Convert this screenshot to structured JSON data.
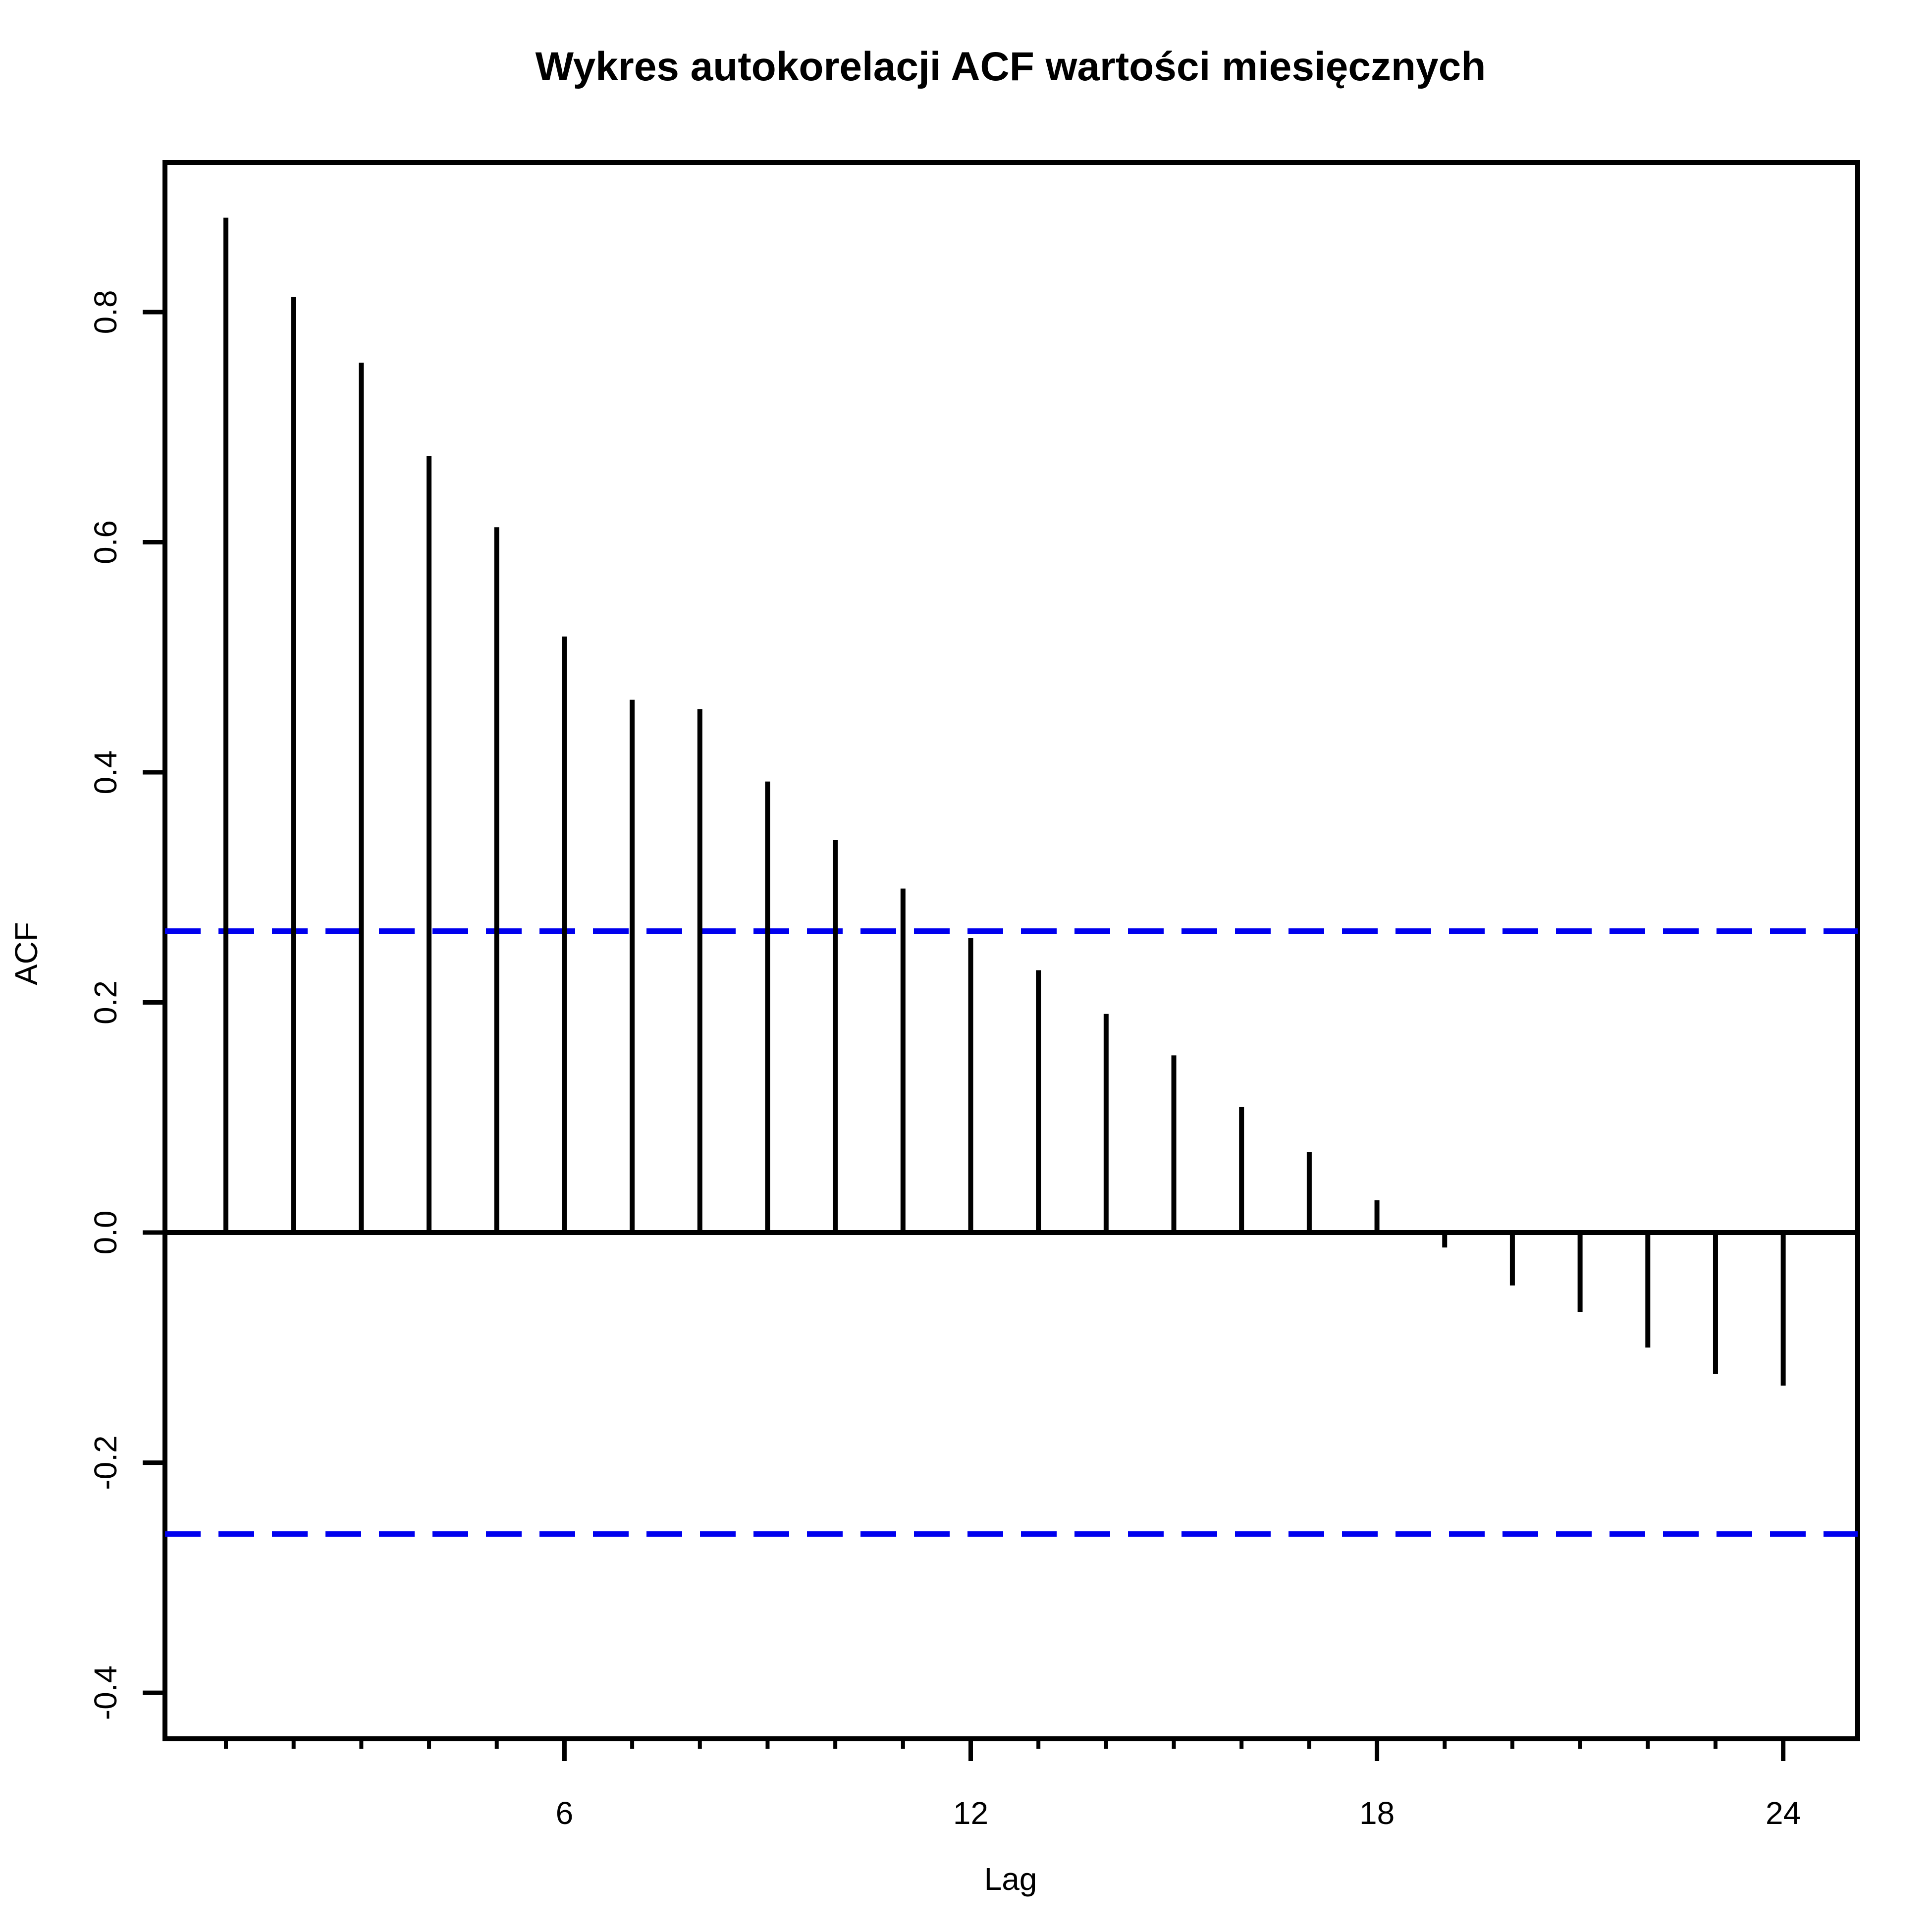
{
  "chart_data": {
    "type": "bar",
    "title": "Wykres autokorelacji ACF wartości miesięcznych",
    "xlabel": "Lag",
    "ylabel": "ACF",
    "xlim": [
      0.1,
      25.1
    ],
    "ylim": [
      -0.44,
      0.93
    ],
    "x_ticks": [
      6,
      12,
      18,
      24
    ],
    "x_minor_ticks": [
      1,
      2,
      3,
      4,
      5,
      6,
      7,
      8,
      9,
      10,
      11,
      12,
      13,
      14,
      15,
      16,
      17,
      18,
      19,
      20,
      21,
      22,
      23,
      24
    ],
    "y_ticks": [
      -0.4,
      -0.2,
      0.0,
      0.2,
      0.4,
      0.6,
      0.8
    ],
    "y_tick_labels": [
      "-0.4",
      "-0.2",
      "0.0",
      "0.2",
      "0.4",
      "0.6",
      "0.8"
    ],
    "lags": [
      1,
      2,
      3,
      4,
      5,
      6,
      7,
      8,
      9,
      10,
      11,
      12,
      13,
      14,
      15,
      16,
      17,
      18,
      19,
      20,
      21,
      22,
      23,
      24
    ],
    "values": [
      0.882,
      0.813,
      0.756,
      0.675,
      0.613,
      0.518,
      0.463,
      0.455,
      0.392,
      0.341,
      0.299,
      0.256,
      0.228,
      0.19,
      0.154,
      0.109,
      0.07,
      0.028,
      -0.013,
      -0.046,
      -0.069,
      -0.1,
      -0.123,
      -0.133
    ],
    "confidence_bound": 0.262,
    "confidence_color": "#0000ee",
    "bar_color": "#000000",
    "grid": false
  }
}
